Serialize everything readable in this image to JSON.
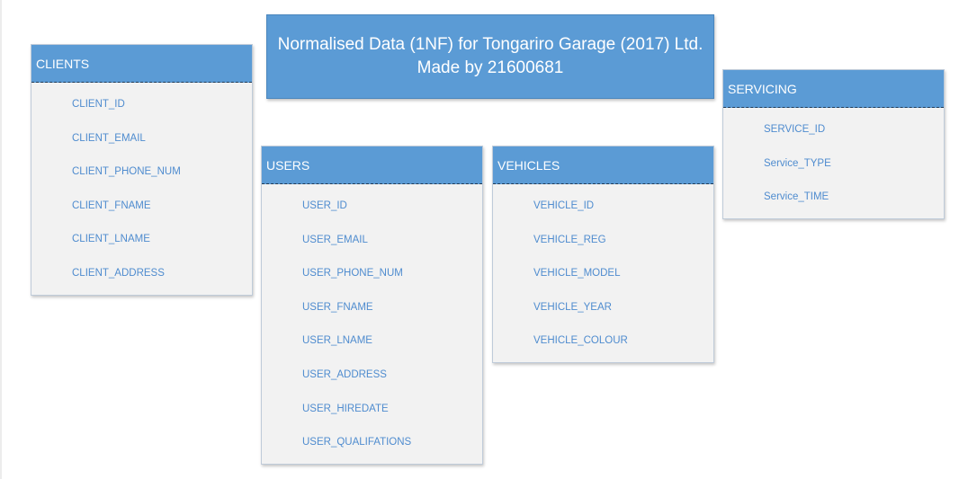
{
  "title": {
    "line1": "Normalised Data (1NF) for Tongariro Garage (2017) Ltd.",
    "line2": "Made by 21600681"
  },
  "entities": {
    "clients": {
      "name": "CLIENTS",
      "fields": [
        "CLIENT_ID",
        "CLIENT_EMAIL",
        "CLIENT_PHONE_NUM",
        "CLIENT_FNAME",
        "CLIENT_LNAME",
        "CLIENT_ADDRESS"
      ]
    },
    "users": {
      "name": "USERS",
      "fields": [
        "USER_ID",
        "USER_EMAIL",
        "USER_PHONE_NUM",
        "USER_FNAME",
        "USER_LNAME",
        "USER_ADDRESS",
        "USER_HIREDATE",
        "USER_QUALIFATIONS"
      ]
    },
    "vehicles": {
      "name": "VEHICLES",
      "fields": [
        "VEHICLE_ID",
        "VEHICLE_REG",
        "VEHICLE_MODEL",
        "VEHICLE_YEAR",
        "VEHICLE_COLOUR"
      ]
    },
    "servicing": {
      "name": "SERVICING",
      "fields": [
        "SERVICE_ID",
        "Service_TYPE",
        "Service_TIME"
      ]
    }
  },
  "colors": {
    "header_fill": "#5b9bd5",
    "body_fill": "#f2f2f2",
    "field_text": "#4f8ccf"
  }
}
